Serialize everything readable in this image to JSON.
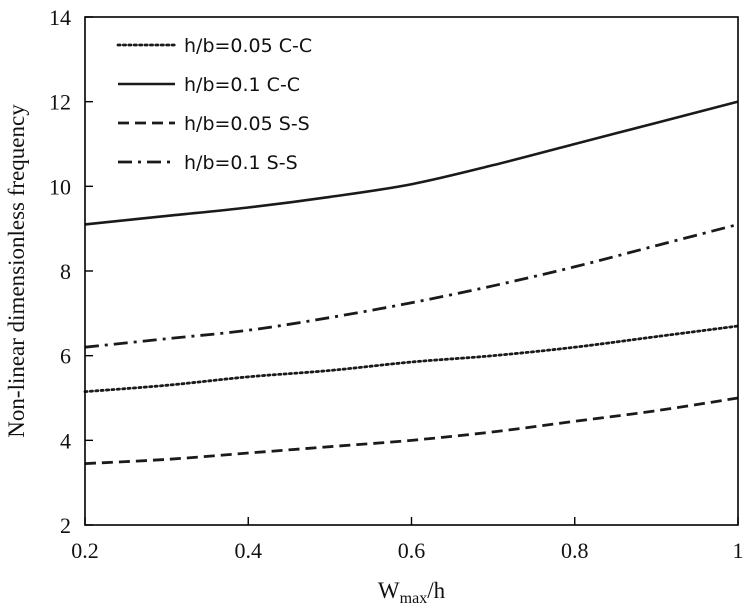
{
  "chart_data": {
    "type": "line",
    "title": "",
    "xlabel_main": "W",
    "xlabel_sub": "max",
    "xlabel_tail": "/h",
    "ylabel": "Non-linear dimensionless frequency",
    "xlim": [
      0.2,
      1
    ],
    "ylim": [
      2,
      14
    ],
    "xticks": [
      "0.2",
      "0.4",
      "0.6",
      "0.8",
      "1"
    ],
    "yticks": [
      "2",
      "4",
      "6",
      "8",
      "10",
      "12",
      "14"
    ],
    "grid": false,
    "legend_position": "top-left",
    "series": [
      {
        "name": "h/b=0.05 C-C",
        "dash": "dotted",
        "x": [
          0.2,
          0.3,
          0.4,
          0.5,
          0.6,
          0.7,
          0.8,
          0.9,
          1.0
        ],
        "y": [
          5.15,
          5.3,
          5.5,
          5.65,
          5.85,
          6.0,
          6.2,
          6.45,
          6.7
        ]
      },
      {
        "name": "h/b=0.1 C-C",
        "dash": "solid",
        "x": [
          0.2,
          0.3,
          0.4,
          0.5,
          0.6,
          0.7,
          0.8,
          0.9,
          1.0
        ],
        "y": [
          9.1,
          9.3,
          9.5,
          9.75,
          10.05,
          10.5,
          11.0,
          11.5,
          12.0
        ]
      },
      {
        "name": "h/b=0.05 S-S",
        "dash": "dashed",
        "x": [
          0.2,
          0.3,
          0.4,
          0.5,
          0.6,
          0.7,
          0.8,
          0.9,
          1.0
        ],
        "y": [
          3.45,
          3.55,
          3.7,
          3.85,
          4.0,
          4.2,
          4.45,
          4.7,
          5.0
        ]
      },
      {
        "name": "h/b=0.1 S-S",
        "dash": "dashdot",
        "x": [
          0.2,
          0.3,
          0.4,
          0.5,
          0.6,
          0.7,
          0.8,
          0.9,
          1.0
        ],
        "y": [
          6.2,
          6.4,
          6.6,
          6.9,
          7.25,
          7.65,
          8.1,
          8.6,
          9.1
        ]
      }
    ]
  }
}
